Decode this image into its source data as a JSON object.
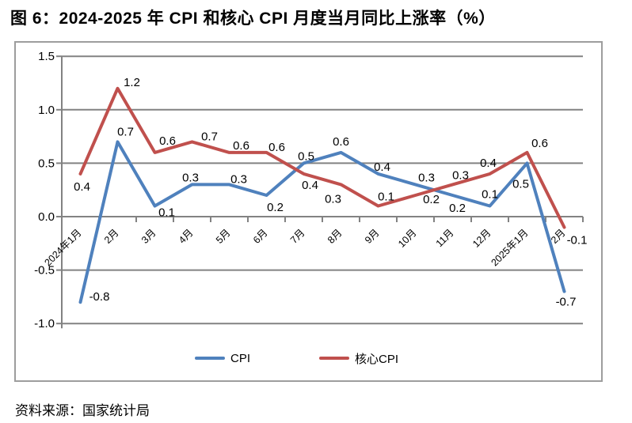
{
  "title": "图 6：2024-2025 年 CPI 和核心 CPI 月度当月同比上涨率（%）",
  "source": "资料来源：国家统计局",
  "chart_data": {
    "type": "line",
    "categories": [
      "2024年1月",
      "2月",
      "3月",
      "4月",
      "5月",
      "6月",
      "7月",
      "8月",
      "9月",
      "10月",
      "11月",
      "12月",
      "2025年1月",
      "2月"
    ],
    "series": [
      {
        "name": "CPI",
        "color": "#4F81BD",
        "values": [
          -0.8,
          0.7,
          0.1,
          0.3,
          0.3,
          0.2,
          0.5,
          0.6,
          0.4,
          0.3,
          0.2,
          0.1,
          0.5,
          -0.7
        ],
        "label_offsets": [
          [
            24,
            -2
          ],
          [
            10,
            -8
          ],
          [
            15,
            13
          ],
          [
            -2,
            -4
          ],
          [
            12,
            -2
          ],
          [
            11,
            20
          ],
          [
            3,
            -4
          ],
          [
            0,
            -9
          ],
          [
            5,
            -4
          ],
          [
            14,
            -4
          ],
          [
            6,
            21
          ],
          [
            0,
            -10
          ],
          [
            -8,
            31
          ],
          [
            2,
            18
          ]
        ]
      },
      {
        "name": "核心CPI",
        "color": "#C0504D",
        "values": [
          0.4,
          1.2,
          0.6,
          0.7,
          0.6,
          0.6,
          0.4,
          0.3,
          0.1,
          0.2,
          0.3,
          0.4,
          0.6,
          -0.1
        ],
        "label_offsets": [
          [
            2,
            21
          ],
          [
            18,
            -3
          ],
          [
            16,
            -10
          ],
          [
            22,
            -2
          ],
          [
            15,
            -4
          ],
          [
            13,
            -2
          ],
          [
            8,
            19
          ],
          [
            -10,
            23
          ],
          [
            10,
            -7
          ],
          [
            20,
            10
          ],
          [
            10,
            -7
          ],
          [
            -2,
            -9
          ],
          [
            16,
            -7
          ],
          [
            16,
            21
          ]
        ]
      }
    ],
    "title": "图 6：2024-2025 年 CPI 和核心 CPI 月度当月同比上涨率（%）",
    "xlabel": "",
    "ylabel": "",
    "ylim": [
      -1.0,
      1.5
    ],
    "yticks": [
      1.5,
      1.0,
      0.5,
      0.0,
      -0.5,
      -1.0
    ],
    "grid": true,
    "legend_position": "bottom",
    "colors": {
      "grid": "#828282",
      "axis": "#828282",
      "frame": "#9d9d9d",
      "label_text": "#000000"
    }
  }
}
